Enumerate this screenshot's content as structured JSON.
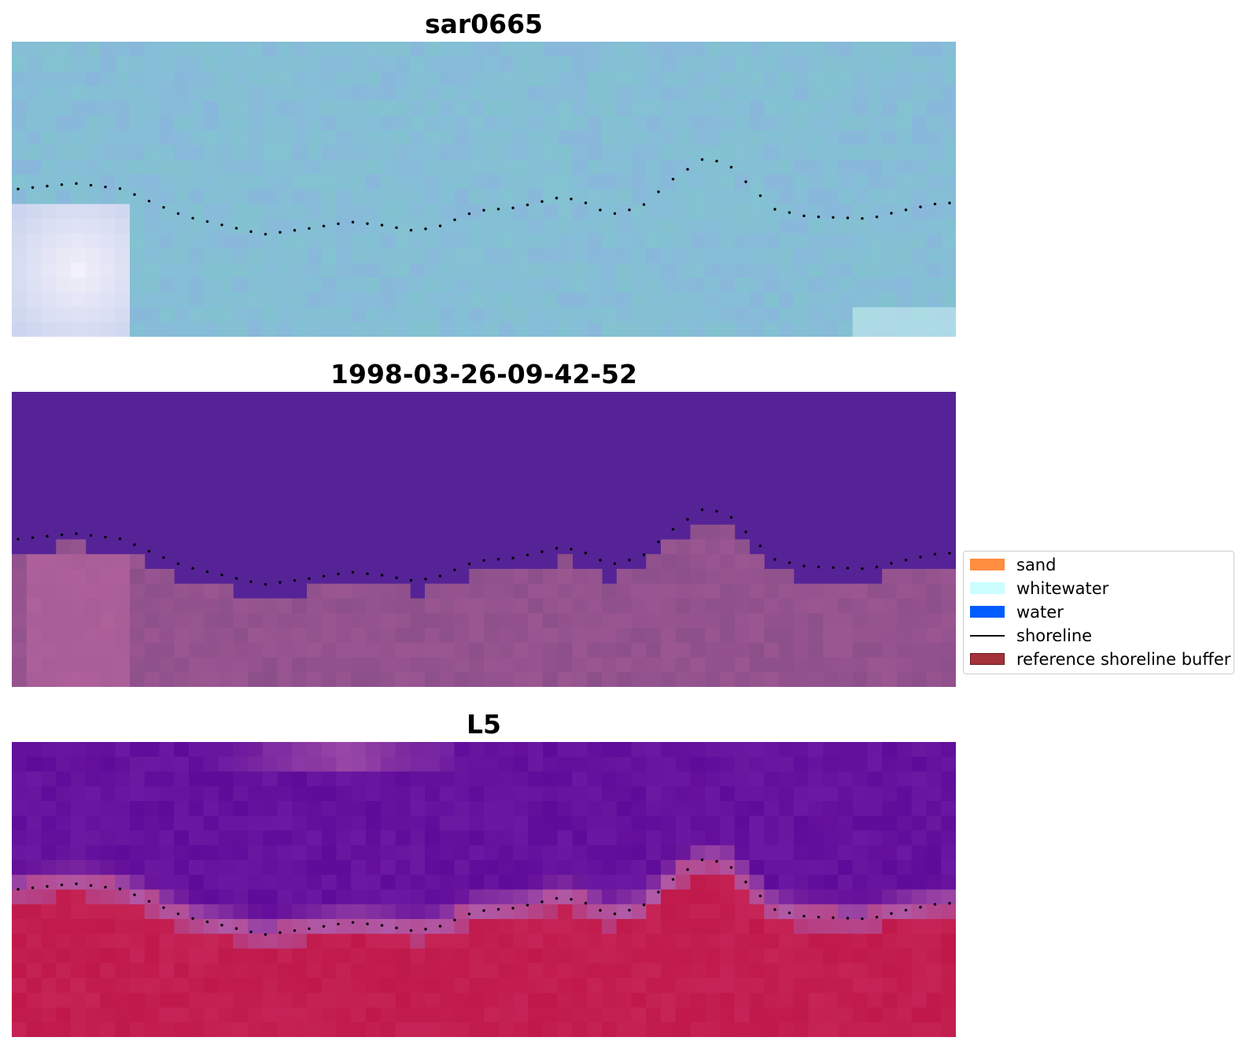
{
  "panels": [
    {
      "title": "sar0665",
      "style": "rgb"
    },
    {
      "title": "1998-03-26-09-42-52",
      "style": "classified"
    },
    {
      "title": "L5",
      "style": "index"
    }
  ],
  "legend": {
    "items": [
      {
        "label": "sand",
        "kind": "patch",
        "color": "#ff8c3f"
      },
      {
        "label": "whitewater",
        "kind": "patch",
        "color": "#ccfdff"
      },
      {
        "label": "water",
        "kind": "patch",
        "color": "#005cff"
      },
      {
        "label": "shoreline",
        "kind": "line",
        "color": "#000000"
      },
      {
        "label": "reference shoreline buffer",
        "kind": "patch",
        "color": "#a3323a",
        "edge": "#6b1820"
      }
    ]
  },
  "colors": {
    "rgb_water": "#85bfd6",
    "rgb_surf": "#f2f0fa",
    "classified_water": "#552396",
    "classified_land": "#8c4f8a",
    "index_water": "#5f0b9a",
    "index_transition": "#b05aa8",
    "index_land": "#c0184a",
    "shoreline_dots": "#000000"
  }
}
